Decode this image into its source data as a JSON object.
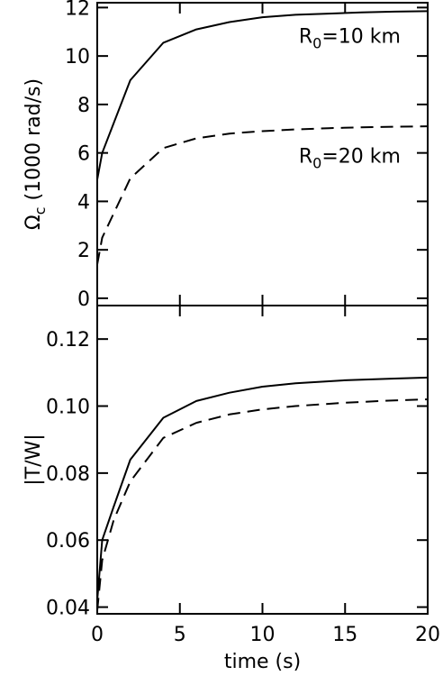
{
  "chart_data": [
    {
      "type": "line",
      "title": "",
      "ylabel_symbol": "Ω",
      "ylabel_subscript": "c",
      "ylabel_rest": " (1000 rad/s)",
      "xlim": [
        0,
        20
      ],
      "ylim": [
        -0.3,
        12.2
      ],
      "yticks": [
        0,
        2,
        4,
        6,
        8,
        10,
        12
      ],
      "xticks": [
        0,
        5,
        10,
        15,
        20
      ],
      "grid": false,
      "series": [
        {
          "style": "solid",
          "x": [
            0,
            0.3,
            2,
            4,
            6,
            8,
            10,
            12,
            14,
            16,
            18,
            20
          ],
          "y": [
            4.9,
            6.0,
            9.0,
            10.55,
            11.1,
            11.4,
            11.6,
            11.7,
            11.75,
            11.8,
            11.83,
            11.85
          ]
        },
        {
          "style": "dashed",
          "x": [
            0,
            0.3,
            2,
            4,
            6,
            8,
            10,
            12,
            14,
            16,
            18,
            20
          ],
          "y": [
            1.4,
            2.5,
            4.95,
            6.2,
            6.6,
            6.8,
            6.9,
            6.97,
            7.02,
            7.06,
            7.08,
            7.1
          ]
        }
      ],
      "annotations": [
        {
          "base": "R",
          "sub": "0",
          "text": "=10 km",
          "anchor_x": 12.2,
          "anchor_y": 10.55
        },
        {
          "base": "R",
          "sub": "0",
          "text": "=20 km",
          "anchor_x": 12.2,
          "anchor_y": 5.6
        }
      ]
    },
    {
      "type": "line",
      "title": "",
      "ylabel": "|T/W|",
      "xlabel": "time (s)",
      "xlim": [
        0,
        20
      ],
      "ylim": [
        0.038,
        0.13
      ],
      "yticks": [
        0.04,
        0.06,
        0.08,
        0.1,
        0.12
      ],
      "xticks": [
        0,
        5,
        10,
        15,
        20
      ],
      "grid": false,
      "series": [
        {
          "style": "solid",
          "x": [
            0,
            0.3,
            1,
            2,
            4,
            6,
            8,
            10,
            12,
            15,
            18,
            20
          ],
          "y": [
            0.042,
            0.06,
            0.07,
            0.084,
            0.0965,
            0.1015,
            0.104,
            0.1058,
            0.1068,
            0.1077,
            0.1082,
            0.1085
          ]
        },
        {
          "style": "dashed",
          "x": [
            0,
            0.3,
            1,
            2,
            4,
            6,
            8,
            10,
            12,
            15,
            18,
            20
          ],
          "y": [
            0.039,
            0.054,
            0.066,
            0.0775,
            0.0905,
            0.095,
            0.0975,
            0.099,
            0.1,
            0.101,
            0.1017,
            0.102
          ]
        }
      ]
    }
  ]
}
